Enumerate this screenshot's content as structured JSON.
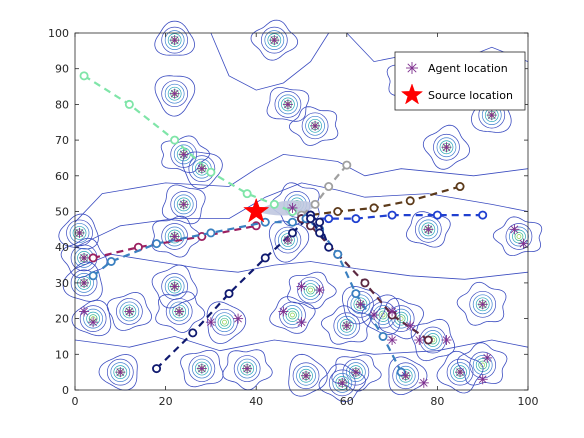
{
  "chart_data": {
    "type": "scatter",
    "xlim": [
      0,
      100
    ],
    "ylim": [
      0,
      100
    ],
    "x_ticks": [
      "0",
      "20",
      "40",
      "60",
      "80",
      "100"
    ],
    "y_ticks": [
      "0",
      "10",
      "20",
      "30",
      "40",
      "50",
      "60",
      "70",
      "80",
      "90",
      "100"
    ],
    "grid": false,
    "legend": {
      "placement": "top-right",
      "entries": [
        {
          "label": "Agent location",
          "marker": "asterisk",
          "color": "#7e2f8e"
        },
        {
          "label": "Source location",
          "marker": "star",
          "color": "#ff0000"
        }
      ]
    },
    "source_location": [
      40,
      50
    ],
    "agent_locations": [
      [
        22,
        98
      ],
      [
        44,
        98
      ],
      [
        74,
        87
      ],
      [
        22,
        83
      ],
      [
        47,
        80
      ],
      [
        53,
        74
      ],
      [
        92,
        77
      ],
      [
        82,
        68
      ],
      [
        24,
        66
      ],
      [
        28,
        62
      ],
      [
        24,
        52
      ],
      [
        48,
        51
      ],
      [
        1,
        44
      ],
      [
        2,
        37
      ],
      [
        22,
        43
      ],
      [
        47,
        42
      ],
      [
        78,
        45
      ],
      [
        97,
        45
      ],
      [
        99,
        41
      ],
      [
        2,
        30
      ],
      [
        22,
        29
      ],
      [
        50,
        29
      ],
      [
        54,
        28
      ],
      [
        63,
        24
      ],
      [
        70,
        22
      ],
      [
        74,
        18
      ],
      [
        90,
        24
      ],
      [
        2,
        22
      ],
      [
        4,
        19
      ],
      [
        12,
        22
      ],
      [
        23,
        22
      ],
      [
        30,
        19
      ],
      [
        36,
        20
      ],
      [
        46,
        22
      ],
      [
        50,
        19
      ],
      [
        60,
        18
      ],
      [
        66,
        21
      ],
      [
        76,
        14
      ],
      [
        82,
        14
      ],
      [
        70,
        14
      ],
      [
        62,
        5
      ],
      [
        73,
        4
      ],
      [
        85,
        5
      ],
      [
        90,
        3
      ],
      [
        91,
        9
      ],
      [
        10,
        5
      ],
      [
        28,
        6
      ],
      [
        38,
        6
      ],
      [
        51,
        4
      ],
      [
        59,
        2
      ],
      [
        77,
        2
      ]
    ],
    "contour_centers": [
      [
        22,
        98
      ],
      [
        44,
        98
      ],
      [
        74,
        87
      ],
      [
        22,
        83
      ],
      [
        47,
        80
      ],
      [
        53,
        74
      ],
      [
        92,
        77
      ],
      [
        82,
        68
      ],
      [
        24,
        66
      ],
      [
        28,
        62
      ],
      [
        24,
        52
      ],
      [
        49,
        52
      ],
      [
        1,
        44
      ],
      [
        2,
        37
      ],
      [
        22,
        43
      ],
      [
        47,
        42
      ],
      [
        78,
        45
      ],
      [
        98,
        43
      ],
      [
        2,
        30
      ],
      [
        22,
        29
      ],
      [
        52,
        28
      ],
      [
        63,
        24
      ],
      [
        72,
        20
      ],
      [
        90,
        24
      ],
      [
        4,
        20
      ],
      [
        12,
        22
      ],
      [
        23,
        22
      ],
      [
        33,
        19
      ],
      [
        48,
        21
      ],
      [
        60,
        18
      ],
      [
        68,
        21
      ],
      [
        79,
        14
      ],
      [
        62,
        5
      ],
      [
        73,
        4
      ],
      [
        85,
        5
      ],
      [
        90,
        7
      ],
      [
        10,
        5
      ],
      [
        28,
        6
      ],
      [
        38,
        6
      ],
      [
        51,
        4
      ],
      [
        59,
        2
      ]
    ],
    "trajectories": [
      {
        "color": "#7fe5a8",
        "points": [
          [
            2,
            88
          ],
          [
            12,
            80
          ],
          [
            22,
            70
          ],
          [
            30,
            61
          ],
          [
            38,
            55
          ],
          [
            44,
            52
          ],
          [
            48,
            50
          ]
        ]
      },
      {
        "color": "#a0a0a0",
        "points": [
          [
            60,
            63
          ],
          [
            56,
            57
          ],
          [
            53,
            52
          ],
          [
            50,
            49
          ]
        ]
      },
      {
        "color": "#5c3a1a",
        "points": [
          [
            85,
            57
          ],
          [
            74,
            53
          ],
          [
            66,
            51
          ],
          [
            58,
            50
          ],
          [
            52,
            49
          ]
        ]
      },
      {
        "color": "#2040d0",
        "points": [
          [
            90,
            49
          ],
          [
            80,
            49
          ],
          [
            70,
            49
          ],
          [
            62,
            48
          ],
          [
            56,
            48
          ],
          [
            50,
            48
          ]
        ]
      },
      {
        "color": "#9b2060",
        "points": [
          [
            4,
            37
          ],
          [
            14,
            40
          ],
          [
            28,
            43
          ],
          [
            40,
            46
          ]
        ]
      },
      {
        "color": "#3a80c0",
        "points": [
          [
            4,
            32
          ],
          [
            8,
            36
          ],
          [
            18,
            41
          ],
          [
            30,
            44
          ],
          [
            42,
            47
          ],
          [
            48,
            47
          ]
        ]
      },
      {
        "color": "#101a70",
        "points": [
          [
            18,
            6
          ],
          [
            26,
            16
          ],
          [
            34,
            27
          ],
          [
            42,
            37
          ],
          [
            48,
            44
          ],
          [
            52,
            49
          ]
        ]
      },
      {
        "color": "#5c2840",
        "points": [
          [
            78,
            14
          ],
          [
            70,
            21
          ],
          [
            64,
            30
          ],
          [
            58,
            38
          ],
          [
            52,
            46
          ],
          [
            50,
            48
          ]
        ]
      },
      {
        "color": "#3a80c0",
        "points": [
          [
            72,
            5
          ],
          [
            68,
            15
          ],
          [
            62,
            27
          ],
          [
            58,
            38
          ],
          [
            54,
            45
          ],
          [
            51,
            48
          ]
        ]
      },
      {
        "color": "#101a70",
        "points": [
          [
            52,
            49
          ],
          [
            54,
            47
          ],
          [
            56,
            40
          ],
          [
            54,
            44
          ],
          [
            52,
            48
          ]
        ]
      }
    ]
  }
}
